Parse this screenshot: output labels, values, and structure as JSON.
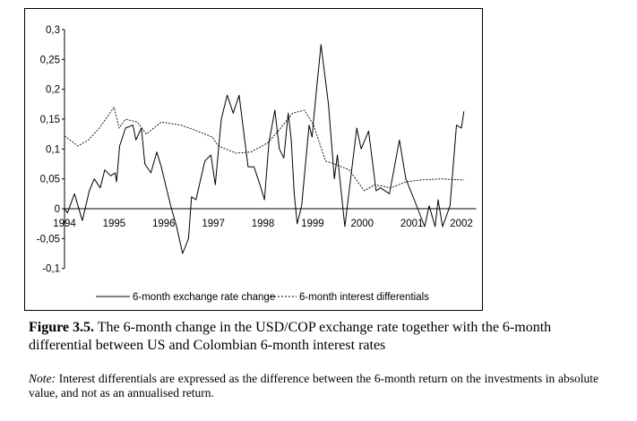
{
  "chart_data": {
    "type": "line",
    "title": "",
    "xlabel": "",
    "ylabel": "",
    "xlim": [
      1994,
      2002.3
    ],
    "ylim": [
      -0.1,
      0.3
    ],
    "grid": false,
    "legend_position": "bottom",
    "x_ticks": [
      "1994",
      "1995",
      "1996",
      "1997",
      "1998",
      "1999",
      "2000",
      "2001",
      "2002"
    ],
    "y_ticks": [
      "0,3",
      "0,25",
      "0,2",
      "0,15",
      "0,1",
      "0,05",
      "0",
      "-0,05",
      "-0,1"
    ],
    "y_tick_values": [
      0.3,
      0.25,
      0.2,
      0.15,
      0.1,
      0.05,
      0,
      -0.05,
      -0.1
    ],
    "series": [
      {
        "name": "6-month exchange rate change",
        "style": "solid",
        "x": [
          1994,
          1994.06,
          1994.2,
          1994.36,
          1994.5,
          1994.6,
          1994.72,
          1994.81,
          1994.93,
          1995.02,
          1995.05,
          1995.11,
          1995.23,
          1995.38,
          1995.44,
          1995.55,
          1995.62,
          1995.74,
          1995.86,
          1995.95,
          1996.14,
          1996.26,
          1996.38,
          1996.5,
          1996.56,
          1996.65,
          1996.83,
          1996.95,
          1997.04,
          1997.16,
          1997.28,
          1997.4,
          1997.52,
          1997.7,
          1997.82,
          1997.94,
          1998.03,
          1998.12,
          1998.24,
          1998.33,
          1998.42,
          1998.51,
          1998.57,
          1998.63,
          1998.69,
          1998.78,
          1998.93,
          1998.99,
          1999.08,
          1999.17,
          1999.32,
          1999.44,
          1999.5,
          1999.65,
          1999.89,
          1999.98,
          2000.13,
          2000.28,
          2000.37,
          2000.55,
          2000.75,
          2000.88,
          2001.05,
          2001.26,
          2001.35,
          2001.47,
          2001.53,
          2001.62,
          2001.77,
          2001.9,
          2002,
          2002.05
        ],
        "y": [
          0,
          -0.007,
          0.025,
          -0.02,
          0.03,
          0.05,
          0.035,
          0.065,
          0.055,
          0.06,
          0.045,
          0.105,
          0.135,
          0.14,
          0.115,
          0.135,
          0.075,
          0.06,
          0.095,
          0.07,
          0.005,
          -0.03,
          -0.075,
          -0.05,
          0.02,
          0.015,
          0.08,
          0.09,
          0.04,
          0.15,
          0.19,
          0.16,
          0.19,
          0.07,
          0.07,
          0.04,
          0.015,
          0.11,
          0.165,
          0.1,
          0.085,
          0.16,
          0.115,
          0.025,
          -0.025,
          0.005,
          0.14,
          0.12,
          0.2,
          0.275,
          0.175,
          0.05,
          0.09,
          -0.03,
          0.135,
          0.1,
          0.13,
          0.03,
          0.035,
          0.025,
          0.115,
          0.05,
          0.015,
          -0.03,
          0.005,
          -0.03,
          0.015,
          -0.03,
          0.005,
          0.14,
          0.135,
          0.163
        ]
      },
      {
        "name": "6-month interest differentials",
        "style": "dashed",
        "x": [
          1994,
          1994.27,
          1994.48,
          1994.7,
          1995,
          1995.1,
          1995.23,
          1995.47,
          1995.65,
          1995.95,
          1996.35,
          1996.68,
          1996.98,
          1997.1,
          1997.46,
          1997.76,
          1998.09,
          1998.36,
          1998.6,
          1998.84,
          1999.02,
          1999.26,
          1999.44,
          1999.74,
          2000.04,
          2000.25,
          2000.58,
          2000.88,
          2001.17,
          2001.59,
          2002.05
        ],
        "y": [
          0.122,
          0.105,
          0.115,
          0.135,
          0.17,
          0.135,
          0.15,
          0.145,
          0.125,
          0.145,
          0.14,
          0.13,
          0.12,
          0.105,
          0.093,
          0.095,
          0.11,
          0.135,
          0.16,
          0.165,
          0.14,
          0.08,
          0.075,
          0.065,
          0.03,
          0.04,
          0.035,
          0.045,
          0.048,
          0.05,
          0.048
        ]
      }
    ]
  },
  "caption": {
    "label": "Figure 3.5.",
    "text": " The 6-month change in the USD/COP exchange rate together with the 6-month differential between US and Colombian 6-month interest rates"
  },
  "note": {
    "label": "Note:",
    "text": " Interest differentials are expressed as the difference between the 6-month return on the investments in absolute value, and not as an annualised return."
  }
}
